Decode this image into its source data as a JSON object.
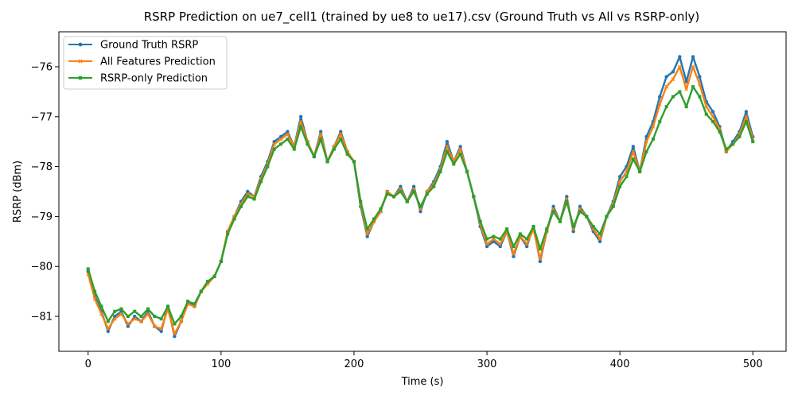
{
  "chart_data": {
    "type": "line",
    "title": "RSRP Prediction on ue7_cell1 (trained by ue8 to ue17).csv (Ground Truth vs All vs RSRP-only)",
    "xlabel": "Time (s)",
    "ylabel": "RSRP (dBm)",
    "xlim": [
      -22,
      525
    ],
    "ylim": [
      -81.7,
      -75.3
    ],
    "xticks": [
      0,
      100,
      200,
      300,
      400,
      500
    ],
    "xtick_labels": [
      "0",
      "100",
      "200",
      "300",
      "400",
      "500"
    ],
    "yticks": [
      -81,
      -80,
      -79,
      -78,
      -77,
      -76
    ],
    "ytick_labels": [
      "−81",
      "−80",
      "−79",
      "−78",
      "−77",
      "−76"
    ],
    "grid": false,
    "legend_position": "top-left",
    "x": [
      0,
      5,
      10,
      15,
      20,
      25,
      30,
      35,
      40,
      45,
      50,
      55,
      60,
      65,
      70,
      75,
      80,
      85,
      90,
      95,
      100,
      105,
      110,
      115,
      120,
      125,
      130,
      135,
      140,
      145,
      150,
      155,
      160,
      165,
      170,
      175,
      180,
      185,
      190,
      195,
      200,
      205,
      210,
      215,
      220,
      225,
      230,
      235,
      240,
      245,
      250,
      255,
      260,
      265,
      270,
      275,
      280,
      285,
      290,
      295,
      300,
      305,
      310,
      315,
      320,
      325,
      330,
      335,
      340,
      345,
      350,
      355,
      360,
      365,
      370,
      375,
      380,
      385,
      390,
      395,
      400,
      405,
      410,
      415,
      420,
      425,
      430,
      435,
      440,
      445,
      450,
      455,
      460,
      465,
      470,
      475,
      480,
      485,
      490,
      495,
      500
    ],
    "series": [
      {
        "name": "Ground Truth RSRP",
        "color": "#1f77b4",
        "marker": "circle",
        "values": [
          -80.1,
          -80.6,
          -80.9,
          -81.3,
          -81.0,
          -80.9,
          -81.2,
          -81.0,
          -81.1,
          -80.9,
          -81.2,
          -81.3,
          -80.8,
          -81.4,
          -81.1,
          -80.7,
          -80.8,
          -80.5,
          -80.3,
          -80.2,
          -79.9,
          -79.3,
          -79.0,
          -78.7,
          -78.5,
          -78.6,
          -78.2,
          -77.9,
          -77.5,
          -77.4,
          -77.3,
          -77.6,
          -77.0,
          -77.5,
          -77.8,
          -77.3,
          -77.9,
          -77.6,
          -77.3,
          -77.7,
          -77.9,
          -78.8,
          -79.4,
          -79.1,
          -78.9,
          -78.5,
          -78.6,
          -78.4,
          -78.7,
          -78.4,
          -78.9,
          -78.5,
          -78.3,
          -78.0,
          -77.5,
          -77.9,
          -77.6,
          -78.1,
          -78.6,
          -79.2,
          -79.6,
          -79.5,
          -79.6,
          -79.3,
          -79.8,
          -79.4,
          -79.6,
          -79.2,
          -79.9,
          -79.3,
          -78.8,
          -79.1,
          -78.6,
          -79.3,
          -78.8,
          -79.0,
          -79.3,
          -79.5,
          -79.0,
          -78.7,
          -78.2,
          -78.0,
          -77.6,
          -78.1,
          -77.4,
          -77.1,
          -76.6,
          -76.2,
          -76.1,
          -75.8,
          -76.3,
          -75.8,
          -76.2,
          -76.7,
          -76.9,
          -77.2,
          -77.7,
          -77.5,
          -77.3,
          -76.9,
          -77.4
        ]
      },
      {
        "name": "All Features Prediction",
        "color": "#ff7f0e",
        "marker": "x",
        "values": [
          -80.15,
          -80.65,
          -80.95,
          -81.25,
          -81.05,
          -80.95,
          -81.15,
          -81.05,
          -81.1,
          -80.95,
          -81.2,
          -81.25,
          -80.85,
          -81.35,
          -81.1,
          -80.75,
          -80.8,
          -80.5,
          -80.35,
          -80.2,
          -79.9,
          -79.3,
          -79.0,
          -78.75,
          -78.55,
          -78.6,
          -78.25,
          -77.95,
          -77.55,
          -77.45,
          -77.35,
          -77.6,
          -77.1,
          -77.5,
          -77.8,
          -77.35,
          -77.9,
          -77.6,
          -77.35,
          -77.7,
          -77.9,
          -78.75,
          -79.35,
          -79.1,
          -78.9,
          -78.5,
          -78.6,
          -78.45,
          -78.7,
          -78.45,
          -78.85,
          -78.5,
          -78.35,
          -78.05,
          -77.6,
          -77.9,
          -77.65,
          -78.1,
          -78.6,
          -79.15,
          -79.55,
          -79.45,
          -79.55,
          -79.3,
          -79.75,
          -79.4,
          -79.55,
          -79.25,
          -79.85,
          -79.3,
          -78.85,
          -79.1,
          -78.65,
          -79.25,
          -78.85,
          -79.0,
          -79.25,
          -79.45,
          -79.0,
          -78.75,
          -78.3,
          -78.1,
          -77.7,
          -78.1,
          -77.5,
          -77.2,
          -76.75,
          -76.4,
          -76.25,
          -76.0,
          -76.45,
          -76.0,
          -76.35,
          -76.8,
          -77.0,
          -77.25,
          -77.7,
          -77.55,
          -77.35,
          -77.0,
          -77.45
        ]
      },
      {
        "name": "RSRP-only Prediction",
        "color": "#2ca02c",
        "marker": "square",
        "values": [
          -80.05,
          -80.5,
          -80.8,
          -81.1,
          -80.9,
          -80.85,
          -81.0,
          -80.9,
          -81.0,
          -80.85,
          -81.0,
          -81.05,
          -80.8,
          -81.15,
          -81.0,
          -80.7,
          -80.75,
          -80.5,
          -80.3,
          -80.2,
          -79.9,
          -79.35,
          -79.05,
          -78.8,
          -78.6,
          -78.65,
          -78.3,
          -78.0,
          -77.65,
          -77.55,
          -77.45,
          -77.65,
          -77.2,
          -77.55,
          -77.8,
          -77.45,
          -77.9,
          -77.65,
          -77.45,
          -77.75,
          -77.9,
          -78.7,
          -79.25,
          -79.05,
          -78.85,
          -78.55,
          -78.6,
          -78.5,
          -78.7,
          -78.5,
          -78.8,
          -78.55,
          -78.4,
          -78.1,
          -77.7,
          -77.95,
          -77.75,
          -78.1,
          -78.6,
          -79.1,
          -79.45,
          -79.4,
          -79.45,
          -79.25,
          -79.6,
          -79.35,
          -79.45,
          -79.2,
          -79.65,
          -79.25,
          -78.9,
          -79.1,
          -78.7,
          -79.2,
          -78.9,
          -79.0,
          -79.2,
          -79.35,
          -79.0,
          -78.8,
          -78.4,
          -78.2,
          -77.85,
          -78.1,
          -77.7,
          -77.45,
          -77.1,
          -76.8,
          -76.6,
          -76.5,
          -76.8,
          -76.4,
          -76.6,
          -76.95,
          -77.1,
          -77.3,
          -77.65,
          -77.55,
          -77.4,
          -77.1,
          -77.5
        ]
      }
    ]
  }
}
